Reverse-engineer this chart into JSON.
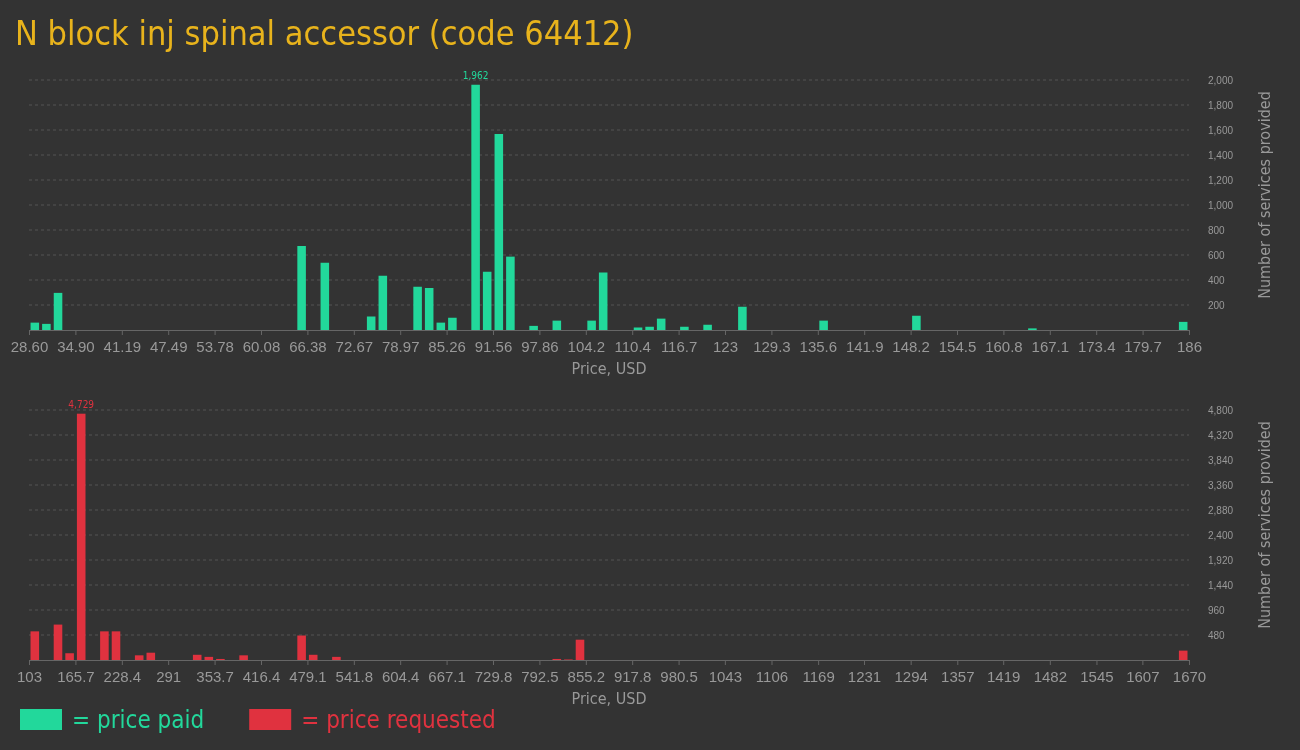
{
  "chart_data": [
    {
      "type": "bar",
      "title": "N block inj spinal accessor (code 64412)",
      "xlabel": "Price, USD",
      "ylabel": "Number of services provided",
      "x": [
        29.39,
        30.96,
        32.54,
        65.59,
        68.74,
        75.03,
        76.61,
        81.33,
        82.9,
        84.48,
        86.05,
        89.2,
        90.77,
        92.35,
        93.92,
        97.07,
        100.22,
        104.94,
        106.51,
        111.24,
        112.81,
        114.38,
        117.53,
        120.68,
        125.4,
        136.42,
        149.01,
        164.75,
        185.21
      ],
      "series": [
        {
          "name": "= price paid",
          "color": "#22d89b",
          "values": [
            59,
            49,
            297,
            672,
            538,
            108,
            434,
            346,
            336,
            59,
            98,
            1962,
            466,
            1568,
            587,
            33,
            75,
            75,
            460,
            20,
            26,
            91,
            26,
            42,
            186,
            75,
            114,
            13,
            65
          ],
          "value_labels": [
            null,
            null,
            null,
            null,
            null,
            null,
            null,
            null,
            null,
            null,
            null,
            "1,962",
            null,
            null,
            null,
            null,
            null,
            null,
            null,
            null,
            null,
            null,
            null,
            null,
            null,
            null,
            null,
            null,
            null
          ]
        }
      ],
      "xlim": [
        28.6,
        186
      ],
      "xticks": [
        {
          "value": 28.6,
          "label": "28.60"
        },
        {
          "value": 34.896,
          "label": "34.90"
        },
        {
          "value": 41.192,
          "label": "41.19"
        },
        {
          "value": 47.488,
          "label": "47.49"
        },
        {
          "value": 53.784,
          "label": "53.78"
        },
        {
          "value": 60.08,
          "label": "60.08"
        },
        {
          "value": 66.376,
          "label": "66.38"
        },
        {
          "value": 72.672,
          "label": "72.67"
        },
        {
          "value": 78.968,
          "label": "78.97"
        },
        {
          "value": 85.264,
          "label": "85.26"
        },
        {
          "value": 91.56,
          "label": "91.56"
        },
        {
          "value": 97.856,
          "label": "97.86"
        },
        {
          "value": 104.152,
          "label": "104.2"
        },
        {
          "value": 110.448,
          "label": "110.4"
        },
        {
          "value": 116.744,
          "label": "116.7"
        },
        {
          "value": 123.04,
          "label": "123"
        },
        {
          "value": 129.336,
          "label": "129.3"
        },
        {
          "value": 135.632,
          "label": "135.6"
        },
        {
          "value": 141.928,
          "label": "141.9"
        },
        {
          "value": 148.224,
          "label": "148.2"
        },
        {
          "value": 154.52,
          "label": "154.5"
        },
        {
          "value": 160.816,
          "label": "160.8"
        },
        {
          "value": 167.112,
          "label": "167.1"
        },
        {
          "value": 173.408,
          "label": "173.4"
        },
        {
          "value": 179.704,
          "label": "179.7"
        },
        {
          "value": 186,
          "label": "186"
        }
      ],
      "ylim": [
        0,
        2000
      ],
      "yticks": [
        200,
        400,
        600,
        800,
        {
          "value": 1000,
          "label": "1,000"
        },
        {
          "value": 1200,
          "label": "1,200"
        },
        {
          "value": 1400,
          "label": "1,400"
        },
        {
          "value": 1600,
          "label": "1,600"
        },
        {
          "value": 1800,
          "label": "1,800"
        },
        {
          "value": 2000,
          "label": "2,000"
        }
      ],
      "grid": "y",
      "legend": "bottom"
    },
    {
      "type": "bar",
      "xlabel": "Price, USD",
      "ylabel": "Number of services provided",
      "x": [
        110.84,
        142.17,
        157.85,
        173.52,
        204.86,
        220.53,
        251.87,
        267.54,
        330.22,
        345.89,
        361.56,
        392.9,
        471.25,
        486.92,
        518.26,
        815.99,
        831.66,
        847.33,
        1662.17
      ],
      "series": [
        {
          "name": "= price requested",
          "color": "#e0323f",
          "values": [
            550,
            680,
            130,
            4729,
            550,
            550,
            90,
            140,
            100,
            60,
            20,
            90,
            470,
            100,
            60,
            20,
            10,
            390,
            180
          ],
          "value_labels": [
            null,
            null,
            null,
            "4,729",
            null,
            null,
            null,
            null,
            null,
            null,
            null,
            null,
            null,
            null,
            null,
            null,
            null,
            null,
            null
          ]
        }
      ],
      "xlim": [
        103,
        1670
      ],
      "xticks": [
        103,
        165.7,
        228.4,
        291,
        353.7,
        416.4,
        479.1,
        541.8,
        604.4,
        667.1,
        729.8,
        792.5,
        855.2,
        917.8,
        980.5,
        1043,
        1106,
        1169,
        1231,
        1294,
        1357,
        1419,
        1482,
        1545,
        1607,
        1670
      ],
      "ylim": [
        0,
        4800
      ],
      "yticks": [
        480,
        960,
        {
          "value": 1440,
          "label": "1,440"
        },
        {
          "value": 1920,
          "label": "1,920"
        },
        {
          "value": 2400,
          "label": "2,400"
        },
        {
          "value": 2880,
          "label": "2,880"
        },
        {
          "value": 3360,
          "label": "3,360"
        },
        {
          "value": 3840,
          "label": "3,840"
        },
        {
          "value": 4320,
          "label": "4,320"
        },
        {
          "value": 4800,
          "label": "4,800"
        }
      ],
      "grid": "y",
      "legend": "bottom"
    }
  ]
}
